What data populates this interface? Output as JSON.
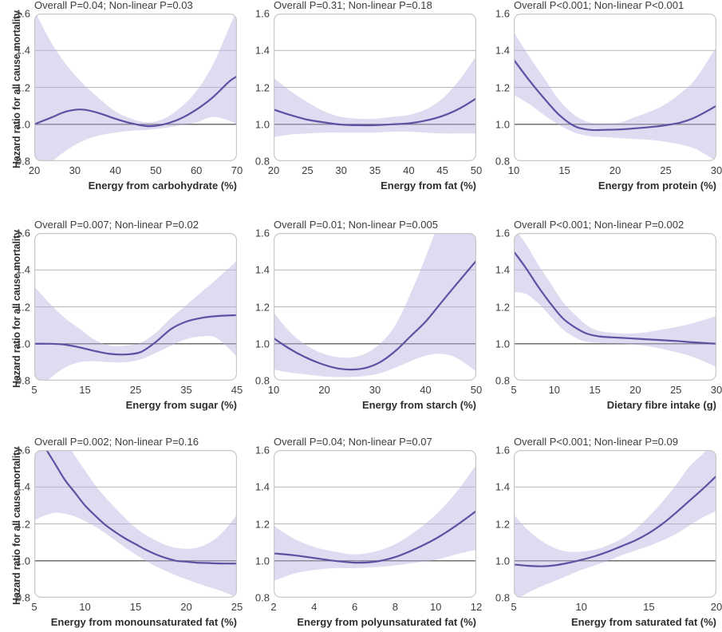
{
  "figure": {
    "y_axis_title": "Hazard ratio for all cause mortality"
  },
  "style": {
    "line_color": "#5a53a3",
    "band_color": "#b7b0dd",
    "band_opacity": 0.45,
    "grid_color": "#b6b6b6",
    "reference_line_color": "#3f3f3f",
    "frame_color": "#c8c8c8",
    "text_color": "#3a3a3a"
  },
  "chart_data": [
    {
      "type": "line",
      "title": "Overall P=0.04; Non-linear P=0.03",
      "xlabel": "Energy from carbohydrate (%)",
      "ylabel": "Hazard ratio for all cause mortality",
      "xlim": [
        20,
        70
      ],
      "ylim": [
        0.8,
        1.6
      ],
      "x_ticks": [
        20,
        30,
        40,
        50,
        60,
        70
      ],
      "y_ticks": [
        0.8,
        1.0,
        1.2,
        1.4,
        1.6
      ],
      "reference_line_y": 1.0,
      "x": [
        20,
        24,
        28,
        32,
        36,
        40,
        44,
        48,
        52,
        56,
        60,
        64,
        68,
        70
      ],
      "hazard_ratio": [
        1.0,
        1.035,
        1.07,
        1.08,
        1.06,
        1.03,
        1.005,
        0.99,
        1.0,
        1.03,
        1.08,
        1.145,
        1.23,
        1.26
      ],
      "ci_upper": [
        1.62,
        1.45,
        1.32,
        1.22,
        1.14,
        1.07,
        1.03,
        1.01,
        1.03,
        1.09,
        1.18,
        1.32,
        1.52,
        1.62
      ],
      "ci_lower": [
        0.7,
        0.79,
        0.86,
        0.91,
        0.94,
        0.955,
        0.965,
        0.97,
        0.98,
        0.995,
        1.01,
        1.04,
        1.02,
        1.0
      ]
    },
    {
      "type": "line",
      "title": "Overall P=0.31; Non-linear P=0.18",
      "xlabel": "Energy from fat (%)",
      "ylabel": "Hazard ratio for all cause mortality",
      "xlim": [
        20,
        50
      ],
      "ylim": [
        0.8,
        1.6
      ],
      "x_ticks": [
        20,
        25,
        30,
        35,
        40,
        45,
        50
      ],
      "y_ticks": [
        0.8,
        1.0,
        1.2,
        1.4,
        1.6
      ],
      "reference_line_y": 1.0,
      "x": [
        20,
        22.5,
        25,
        27.5,
        30,
        32.5,
        35,
        37.5,
        40,
        42.5,
        45,
        47.5,
        50
      ],
      "hazard_ratio": [
        1.08,
        1.05,
        1.025,
        1.01,
        0.998,
        0.995,
        0.995,
        1.0,
        1.005,
        1.02,
        1.045,
        1.085,
        1.14
      ],
      "ci_upper": [
        1.25,
        1.18,
        1.12,
        1.07,
        1.04,
        1.03,
        1.03,
        1.04,
        1.05,
        1.08,
        1.14,
        1.24,
        1.37
      ],
      "ci_lower": [
        0.93,
        0.945,
        0.95,
        0.955,
        0.955,
        0.955,
        0.955,
        0.96,
        0.96,
        0.955,
        0.95,
        0.95,
        0.95
      ]
    },
    {
      "type": "line",
      "title": "Overall P<0.001; Non-linear P<0.001",
      "xlabel": "Energy from protein (%)",
      "ylabel": "Hazard ratio for all cause mortality",
      "xlim": [
        10,
        30
      ],
      "ylim": [
        0.8,
        1.6
      ],
      "x_ticks": [
        10,
        15,
        20,
        25,
        30
      ],
      "y_ticks": [
        0.8,
        1.0,
        1.2,
        1.4,
        1.6
      ],
      "reference_line_y": 1.0,
      "x": [
        10,
        11.5,
        13,
        14.5,
        16,
        17.5,
        19,
        20.5,
        22,
        23.5,
        25,
        26.5,
        28,
        30
      ],
      "hazard_ratio": [
        1.35,
        1.24,
        1.14,
        1.05,
        0.99,
        0.97,
        0.97,
        0.972,
        0.978,
        0.985,
        0.995,
        1.01,
        1.04,
        1.1
      ],
      "ci_upper": [
        1.5,
        1.37,
        1.25,
        1.13,
        1.05,
        1.01,
        1.005,
        1.01,
        1.04,
        1.07,
        1.11,
        1.17,
        1.25,
        1.42
      ],
      "ci_lower": [
        1.16,
        1.11,
        1.05,
        0.995,
        0.955,
        0.935,
        0.93,
        0.925,
        0.92,
        0.915,
        0.905,
        0.89,
        0.865,
        0.8
      ]
    },
    {
      "type": "line",
      "title": "Overall P=0.007; Non-linear P=0.02",
      "xlabel": "Energy from sugar (%)",
      "ylabel": "Hazard ratio for all cause mortality",
      "xlim": [
        5,
        45
      ],
      "ylim": [
        0.8,
        1.6
      ],
      "x_ticks": [
        5,
        15,
        25,
        35,
        45
      ],
      "y_ticks": [
        0.8,
        1.0,
        1.2,
        1.4,
        1.6
      ],
      "reference_line_y": 1.0,
      "x": [
        5,
        8,
        11,
        14,
        17,
        20,
        23,
        26,
        29,
        32,
        35,
        38,
        41,
        45
      ],
      "hazard_ratio": [
        1.0,
        1.0,
        0.995,
        0.98,
        0.96,
        0.945,
        0.942,
        0.955,
        1.01,
        1.08,
        1.12,
        1.14,
        1.15,
        1.155
      ],
      "ci_upper": [
        1.31,
        1.22,
        1.14,
        1.08,
        1.02,
        0.99,
        0.99,
        1.005,
        1.06,
        1.14,
        1.21,
        1.28,
        1.35,
        1.45
      ],
      "ci_lower": [
        0.74,
        0.81,
        0.87,
        0.9,
        0.905,
        0.9,
        0.9,
        0.915,
        0.95,
        0.99,
        1.025,
        1.04,
        1.03,
        0.93
      ]
    },
    {
      "type": "line",
      "title": "Overall P=0.01; Non-linear P=0.005",
      "xlabel": "Energy from starch (%)",
      "ylabel": "Hazard ratio for all cause mortality",
      "xlim": [
        10,
        50
      ],
      "ylim": [
        0.8,
        1.6
      ],
      "x_ticks": [
        10,
        20,
        30,
        40,
        50
      ],
      "y_ticks": [
        0.8,
        1.0,
        1.2,
        1.4,
        1.6
      ],
      "reference_line_y": 1.0,
      "x": [
        10,
        13,
        16,
        19,
        22,
        25,
        28,
        31,
        34,
        37,
        40,
        43,
        46,
        50
      ],
      "hazard_ratio": [
        1.03,
        0.975,
        0.93,
        0.895,
        0.87,
        0.86,
        0.868,
        0.9,
        0.96,
        1.04,
        1.12,
        1.22,
        1.32,
        1.45
      ],
      "ci_upper": [
        1.17,
        1.07,
        1.0,
        0.955,
        0.93,
        0.925,
        0.945,
        1.0,
        1.1,
        1.27,
        1.47,
        1.68,
        1.85,
        2.0
      ],
      "ci_lower": [
        0.86,
        0.845,
        0.835,
        0.825,
        0.82,
        0.82,
        0.825,
        0.84,
        0.87,
        0.905,
        0.935,
        0.945,
        0.925,
        0.85
      ]
    },
    {
      "type": "line",
      "title": "Overall P<0.001; Non-linear P=0.002",
      "xlabel": "Dietary fibre intake (g)",
      "ylabel": "Hazard ratio for all cause mortality",
      "xlim": [
        5,
        30
      ],
      "ylim": [
        0.8,
        1.6
      ],
      "x_ticks": [
        5,
        10,
        15,
        20,
        25,
        30
      ],
      "y_ticks": [
        0.8,
        1.0,
        1.2,
        1.4,
        1.6
      ],
      "reference_line_y": 1.0,
      "x": [
        5,
        6.5,
        8,
        9.5,
        11,
        12.5,
        14,
        15.5,
        17,
        19,
        21,
        23,
        25,
        27,
        30
      ],
      "hazard_ratio": [
        1.5,
        1.41,
        1.31,
        1.22,
        1.14,
        1.09,
        1.055,
        1.04,
        1.035,
        1.03,
        1.025,
        1.02,
        1.015,
        1.008,
        1.0
      ],
      "ci_upper": [
        1.63,
        1.54,
        1.43,
        1.33,
        1.23,
        1.16,
        1.1,
        1.07,
        1.06,
        1.055,
        1.06,
        1.075,
        1.09,
        1.11,
        1.15
      ],
      "ci_lower": [
        1.28,
        1.27,
        1.22,
        1.15,
        1.08,
        1.035,
        1.01,
        1.005,
        1.0,
        0.998,
        0.99,
        0.975,
        0.955,
        0.93,
        0.875
      ]
    },
    {
      "type": "line",
      "title": "Overall P=0.002; Non-linear P=0.16",
      "xlabel": "Energy from monounsaturated fat (%)",
      "ylabel": "Hazard ratio for all cause mortality",
      "xlim": [
        5,
        25
      ],
      "ylim": [
        0.8,
        1.6
      ],
      "x_ticks": [
        5,
        10,
        15,
        20,
        25
      ],
      "y_ticks": [
        0.8,
        1.0,
        1.2,
        1.4,
        1.6
      ],
      "reference_line_y": 1.0,
      "x": [
        5,
        6,
        7,
        8,
        9,
        10,
        11,
        12,
        13,
        14,
        15,
        16,
        17,
        18,
        19,
        20,
        21,
        22,
        23,
        24,
        25
      ],
      "hazard_ratio": [
        1.72,
        1.62,
        1.53,
        1.44,
        1.37,
        1.3,
        1.245,
        1.195,
        1.155,
        1.12,
        1.09,
        1.06,
        1.035,
        1.015,
        1.0,
        0.995,
        0.99,
        0.988,
        0.986,
        0.985,
        0.985
      ],
      "ci_upper": [
        1.95,
        1.85,
        1.75,
        1.66,
        1.57,
        1.49,
        1.41,
        1.345,
        1.285,
        1.23,
        1.18,
        1.14,
        1.11,
        1.085,
        1.07,
        1.065,
        1.07,
        1.09,
        1.125,
        1.18,
        1.25
      ],
      "ci_lower": [
        1.22,
        1.245,
        1.26,
        1.255,
        1.24,
        1.215,
        1.185,
        1.15,
        1.11,
        1.07,
        1.035,
        1.0,
        0.97,
        0.945,
        0.92,
        0.9,
        0.88,
        0.862,
        0.845,
        0.825,
        0.8
      ]
    },
    {
      "type": "line",
      "title": "Overall P=0.04; Non-linear P=0.07",
      "xlabel": "Energy from polyunsaturated fat (%)",
      "ylabel": "Hazard ratio for all cause mortality",
      "xlim": [
        2,
        12
      ],
      "ylim": [
        0.8,
        1.6
      ],
      "x_ticks": [
        2,
        4,
        6,
        8,
        10,
        12
      ],
      "y_ticks": [
        0.8,
        1.0,
        1.2,
        1.4,
        1.6
      ],
      "reference_line_y": 1.0,
      "x": [
        2,
        3,
        4,
        5,
        6,
        7,
        8,
        9,
        10,
        11,
        12
      ],
      "hazard_ratio": [
        1.04,
        1.03,
        1.015,
        1.0,
        0.99,
        0.995,
        1.02,
        1.065,
        1.12,
        1.19,
        1.27
      ],
      "ci_upper": [
        1.19,
        1.12,
        1.075,
        1.05,
        1.035,
        1.05,
        1.09,
        1.16,
        1.25,
        1.37,
        1.52
      ],
      "ci_lower": [
        0.89,
        0.93,
        0.95,
        0.96,
        0.96,
        0.965,
        0.975,
        0.99,
        1.005,
        1.035,
        1.06
      ]
    },
    {
      "type": "line",
      "title": "Overall P<0.001; Non-linear P=0.09",
      "xlabel": "Energy from saturated fat (%)",
      "ylabel": "Hazard ratio for all cause mortality",
      "xlim": [
        5,
        20
      ],
      "ylim": [
        0.8,
        1.6
      ],
      "x_ticks": [
        5,
        10,
        15,
        20
      ],
      "y_ticks": [
        0.8,
        1.0,
        1.2,
        1.4,
        1.6
      ],
      "reference_line_y": 1.0,
      "x": [
        5,
        6,
        7,
        8,
        9,
        10,
        11,
        12,
        13,
        14,
        15,
        16,
        17,
        18,
        19,
        20
      ],
      "hazard_ratio": [
        0.98,
        0.973,
        0.97,
        0.975,
        0.988,
        1.005,
        1.025,
        1.05,
        1.08,
        1.11,
        1.15,
        1.2,
        1.26,
        1.325,
        1.39,
        1.46
      ],
      "ci_upper": [
        1.25,
        1.17,
        1.11,
        1.07,
        1.05,
        1.05,
        1.06,
        1.085,
        1.12,
        1.17,
        1.24,
        1.32,
        1.41,
        1.51,
        1.58,
        1.66
      ],
      "ci_lower": [
        0.78,
        0.825,
        0.86,
        0.89,
        0.92,
        0.95,
        0.975,
        1.0,
        1.03,
        1.055,
        1.08,
        1.11,
        1.145,
        1.19,
        1.235,
        1.27
      ]
    }
  ]
}
